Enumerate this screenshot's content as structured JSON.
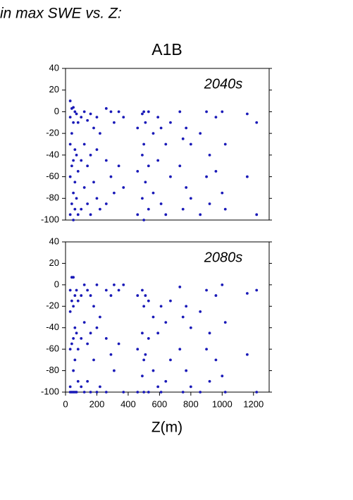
{
  "caption": "in max SWE vs. Z:",
  "chart_data": [
    {
      "type": "scatter",
      "title": "A1B",
      "annotation": "2040s",
      "color": "#1a1ab8",
      "xlim": [
        0,
        1300
      ],
      "ylim": [
        -100,
        40
      ],
      "yticks": [
        40,
        20,
        0,
        -20,
        -40,
        -60,
        -80,
        -100
      ],
      "x": [
        30,
        30,
        30,
        30,
        30,
        40,
        40,
        40,
        40,
        50,
        50,
        50,
        50,
        50,
        60,
        60,
        60,
        60,
        70,
        70,
        70,
        80,
        80,
        80,
        100,
        100,
        100,
        120,
        120,
        120,
        140,
        140,
        140,
        160,
        160,
        160,
        180,
        180,
        200,
        200,
        200,
        220,
        220,
        260,
        260,
        260,
        290,
        290,
        310,
        310,
        340,
        340,
        370,
        370,
        460,
        460,
        460,
        490,
        490,
        490,
        500,
        500,
        500,
        510,
        510,
        530,
        530,
        530,
        560,
        560,
        590,
        590,
        610,
        610,
        640,
        640,
        670,
        670,
        730,
        730,
        750,
        750,
        770,
        770,
        800,
        800,
        860,
        860,
        900,
        900,
        920,
        920,
        960,
        960,
        1000,
        1000,
        1020,
        1020,
        1160,
        1160,
        1220,
        1220
      ],
      "values": [
        10,
        -5,
        -30,
        -60,
        -95,
        3,
        -20,
        -50,
        -85,
        4,
        -10,
        -45,
        -75,
        -100,
        0,
        -35,
        -65,
        -90,
        -2,
        -40,
        -80,
        -10,
        -55,
        -95,
        -5,
        -45,
        -90,
        0,
        -30,
        -70,
        -8,
        -50,
        -85,
        -2,
        -40,
        -95,
        -15,
        -65,
        -5,
        -35,
        -80,
        -20,
        -90,
        3,
        -45,
        -85,
        0,
        -60,
        -10,
        -75,
        0,
        -50,
        -5,
        -70,
        -15,
        -55,
        -95,
        -2,
        -40,
        -80,
        0,
        -30,
        -100,
        -10,
        -65,
        0,
        -50,
        -90,
        -20,
        -75,
        -5,
        -45,
        -15,
        -85,
        -30,
        -95,
        -10,
        -60,
        0,
        -50,
        -25,
        -90,
        -15,
        -70,
        -30,
        -80,
        -20,
        -95,
        0,
        -60,
        -40,
        -85,
        -5,
        -55,
        0,
        -75,
        -30,
        -90,
        -2,
        -60,
        -10,
        -95
      ]
    },
    {
      "type": "scatter",
      "annotation": "2080s",
      "xlabel": "Z(m)",
      "color": "#1a1ab8",
      "xlim": [
        0,
        1300
      ],
      "ylim": [
        -100,
        40
      ],
      "yticks": [
        40,
        20,
        0,
        -20,
        -40,
        -60,
        -80,
        -100
      ],
      "xticks": [
        0,
        200,
        400,
        600,
        800,
        1000,
        1200
      ],
      "x": [
        30,
        30,
        30,
        30,
        30,
        40,
        40,
        40,
        40,
        50,
        50,
        50,
        50,
        50,
        60,
        60,
        60,
        60,
        70,
        70,
        70,
        80,
        80,
        80,
        100,
        100,
        100,
        120,
        120,
        120,
        140,
        140,
        140,
        160,
        160,
        160,
        180,
        180,
        200,
        200,
        200,
        220,
        220,
        260,
        260,
        260,
        290,
        290,
        310,
        310,
        340,
        340,
        370,
        370,
        460,
        460,
        460,
        490,
        490,
        490,
        500,
        500,
        500,
        510,
        510,
        530,
        530,
        530,
        560,
        560,
        590,
        590,
        610,
        610,
        640,
        640,
        670,
        670,
        730,
        730,
        750,
        750,
        770,
        770,
        800,
        800,
        860,
        860,
        900,
        900,
        920,
        920,
        960,
        960,
        1000,
        1000,
        1020,
        1020,
        1160,
        1160,
        1220,
        1220
      ],
      "values": [
        -5,
        -25,
        -60,
        -95,
        -100,
        7,
        -15,
        -55,
        -100,
        7,
        -20,
        -50,
        -80,
        -100,
        -10,
        -40,
        -70,
        -100,
        -5,
        -45,
        -100,
        -15,
        -60,
        -90,
        -10,
        -50,
        -95,
        0,
        -35,
        -100,
        -5,
        -55,
        -90,
        -10,
        -45,
        -100,
        -20,
        -70,
        0,
        -40,
        -100,
        -30,
        -95,
        -5,
        -50,
        -100,
        -10,
        -65,
        0,
        -80,
        -5,
        -55,
        0,
        -100,
        -10,
        -60,
        -100,
        -5,
        -45,
        -85,
        -20,
        -70,
        -100,
        -10,
        -65,
        -15,
        -50,
        -100,
        -30,
        -80,
        -45,
        -95,
        -20,
        -100,
        -35,
        -90,
        -15,
        -70,
        -2,
        -60,
        -30,
        -100,
        -20,
        -80,
        -40,
        -95,
        -25,
        -100,
        -5,
        -60,
        -45,
        -90,
        -10,
        -70,
        0,
        -85,
        -35,
        -100,
        -8,
        -65,
        -5,
        -100
      ]
    }
  ]
}
